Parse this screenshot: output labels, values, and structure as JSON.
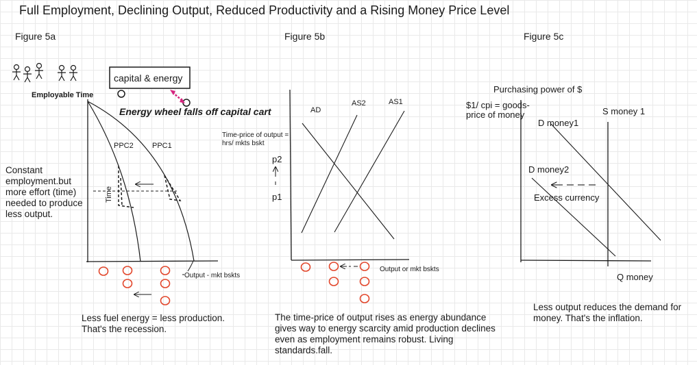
{
  "title": "Full Employment, Declining Output, Reduced Productivity and a Rising Money Price Level",
  "figures": {
    "fig5a": {
      "label": "Figure 5a",
      "employable_time": "Employable Time",
      "capital_box": "capital & energy",
      "energy_wheel": "Energy wheel falls off capital cart",
      "ppc2": "PPC2",
      "ppc1": "PPC1",
      "time_axis": "Time",
      "output_axis": "Output - mkt bskts",
      "side_note": "Constant employment.but more effort (time) needed to produce less output.",
      "caption": "Less fuel energy = less production. That's the recession."
    },
    "fig5b": {
      "label": "Figure 5b",
      "time_price": "Time-price of output = hrs/ mkts bskt",
      "ad": "AD",
      "as2": "AS2",
      "as1": "AS1",
      "p2": "p2",
      "p1": "p1",
      "output_axis": "Output or mkt bskts",
      "caption": "The time-price of output rises as energy abundance gives way to energy scarcity amid production declines even as employment remains robust. Living standards.fall."
    },
    "fig5c": {
      "label": "Figure 5c",
      "purchasing_power": "Purchasing power of $",
      "cpi_label": "$1/ cpi =  goods-price of money",
      "s_money": "S money 1",
      "d_money1": "D money1",
      "d_money2": "D money2",
      "excess": "Excess currency",
      "q_money": "Q money",
      "caption": "Less output reduces the demand for money. That's the inflation."
    }
  },
  "colors": {
    "ink": "#1a1a1a",
    "circle": "#e2462b",
    "magenta": "#d6247f"
  }
}
